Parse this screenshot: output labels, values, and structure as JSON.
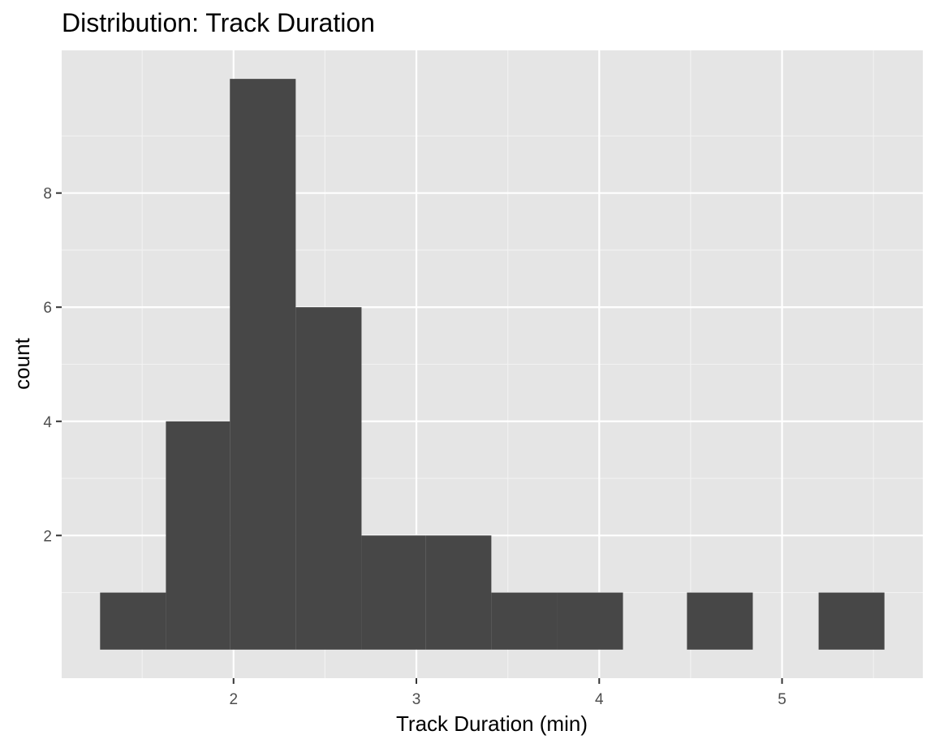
{
  "chart_data": {
    "type": "histogram",
    "title": "Distribution: Track Duration",
    "xlabel": "Track Duration (min)",
    "ylabel": "count",
    "xlim": [
      1.06,
      5.77
    ],
    "ylim": [
      -0.5,
      10.5
    ],
    "x_ticks": [
      2,
      3,
      4,
      5
    ],
    "x_tick_labels": [
      "2",
      "3",
      "4",
      "5"
    ],
    "y_ticks": [
      2,
      4,
      6,
      8
    ],
    "y_tick_labels": [
      "2",
      "4",
      "6",
      "8"
    ],
    "bins": [
      {
        "x0": 1.27,
        "x1": 1.63,
        "count": 1
      },
      {
        "x0": 1.63,
        "x1": 1.98,
        "count": 4
      },
      {
        "x0": 1.98,
        "x1": 2.34,
        "count": 10
      },
      {
        "x0": 2.34,
        "x1": 2.7,
        "count": 6
      },
      {
        "x0": 2.7,
        "x1": 3.05,
        "count": 2
      },
      {
        "x0": 3.05,
        "x1": 3.41,
        "count": 2
      },
      {
        "x0": 3.41,
        "x1": 3.77,
        "count": 1
      },
      {
        "x0": 3.77,
        "x1": 4.13,
        "count": 1
      },
      {
        "x0": 4.13,
        "x1": 4.48,
        "count": 0
      },
      {
        "x0": 4.48,
        "x1": 4.84,
        "count": 1
      },
      {
        "x0": 4.84,
        "x1": 5.2,
        "count": 0
      },
      {
        "x0": 5.2,
        "x1": 5.56,
        "count": 1
      }
    ],
    "colors": {
      "bar": "#474747",
      "panel_background": "#e5e5e5",
      "grid_major": "#ffffff",
      "grid_minor": "#f2f2f2",
      "tick_label": "#4d4d4d",
      "tick_mark": "#333333"
    },
    "grid": true,
    "legend": "none"
  }
}
